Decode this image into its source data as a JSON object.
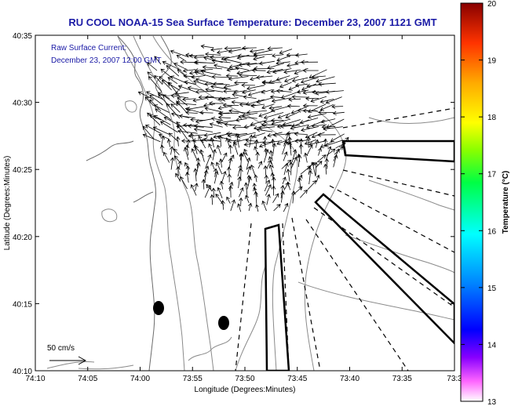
{
  "title": "RU COOL  NOAA-15  Sea Surface Temperature:  December 23, 2007 1121 GMT",
  "annotation": {
    "line1": "Raw Surface Current:",
    "line2": "December 23, 2007 12:00 GMT"
  },
  "scale_label": "50 cm/s",
  "x_axis": {
    "label": "Longitude (Degrees:Minutes)",
    "ticks": [
      "74:10",
      "74:05",
      "74:00",
      "73:55",
      "73:50",
      "73:45",
      "73:40",
      "73:35",
      "73:3"
    ]
  },
  "y_axis": {
    "label": "Latitude (Degrees:Minutes)",
    "ticks": [
      "40:10",
      "40:15",
      "40:20",
      "40:25",
      "40:30",
      "40:35"
    ]
  },
  "colorbar": {
    "label": "Temperature (°C)",
    "ticks": [
      "13",
      "14",
      "15",
      "16",
      "17",
      "18",
      "19",
      "20"
    ],
    "range": [
      13,
      20
    ]
  },
  "colors": {
    "title": "#1a1aa6",
    "contour": "#8a8a8a",
    "arrow": "#000000"
  }
}
